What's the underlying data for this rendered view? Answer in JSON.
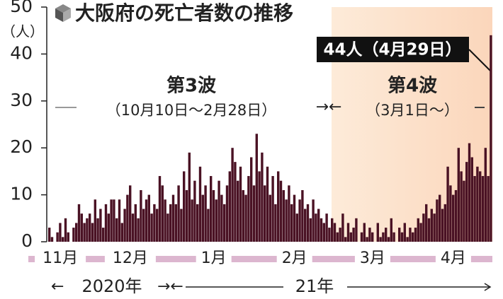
{
  "chart_data": {
    "type": "bar",
    "title": "大阪府の死亡者数の推移",
    "y_unit": "（人）",
    "annotation": "44人（4月29日）",
    "wave3": {
      "name": "第3波",
      "period": "（10月10日～2月28日）"
    },
    "wave4": {
      "name": "第4波",
      "period": "（3月1日～）"
    },
    "years": [
      "2020年",
      "21年"
    ],
    "color": "#4a1224",
    "ylim": [
      0,
      50
    ],
    "yticks": [
      0,
      10,
      20,
      30,
      40,
      50
    ],
    "categories": [
      null,
      null,
      null,
      null,
      "11月",
      null,
      null,
      null,
      null,
      null,
      null,
      null,
      null,
      null,
      null,
      null,
      null,
      null,
      null,
      null,
      null,
      null,
      null,
      null,
      null,
      null,
      null,
      null,
      null,
      null,
      "12月",
      null,
      null,
      null,
      null,
      null,
      null,
      null,
      null,
      null,
      null,
      null,
      null,
      null,
      null,
      null,
      null,
      null,
      null,
      null,
      null,
      null,
      null,
      null,
      null,
      null,
      null,
      null,
      null,
      null,
      null,
      "1月",
      null,
      null,
      null,
      null,
      null,
      null,
      null,
      null,
      null,
      null,
      null,
      null,
      null,
      null,
      null,
      null,
      null,
      null,
      null,
      null,
      null,
      null,
      null,
      null,
      null,
      null,
      null,
      null,
      null,
      "2月",
      null,
      null,
      null,
      null,
      null,
      null,
      null,
      null,
      null,
      null,
      null,
      null,
      null,
      null,
      null,
      null,
      null,
      null,
      null,
      null,
      null,
      null,
      null,
      null,
      null,
      null,
      null,
      null,
      "3月",
      null,
      null,
      null,
      null,
      null,
      null,
      null,
      null,
      null,
      null,
      null,
      null,
      null,
      null,
      null,
      null,
      null,
      null,
      null,
      null,
      null,
      null,
      null,
      null,
      null,
      null,
      null,
      null,
      null,
      "4月",
      null,
      null,
      null,
      null,
      null,
      null,
      null,
      null,
      null,
      null,
      null,
      null,
      null,
      null
    ],
    "values": [
      3,
      1,
      0,
      2,
      4,
      1,
      5,
      2,
      0,
      3,
      4,
      8,
      6,
      4,
      5,
      6,
      4,
      9,
      5,
      7,
      3,
      8,
      6,
      9,
      9,
      5,
      9,
      4,
      7,
      10,
      12,
      6,
      8,
      5,
      11,
      7,
      9,
      10,
      6,
      8,
      7,
      14,
      12,
      9,
      6,
      8,
      10,
      8,
      12,
      7,
      15,
      11,
      19,
      9,
      13,
      8,
      16,
      10,
      12,
      7,
      14,
      11,
      9,
      13,
      10,
      8,
      12,
      15,
      20,
      17,
      13,
      16,
      11,
      10,
      14,
      18,
      12,
      23,
      15,
      19,
      12,
      16,
      10,
      14,
      8,
      15,
      13,
      11,
      9,
      12,
      8,
      10,
      6,
      9,
      11,
      7,
      8,
      5,
      9,
      6,
      7,
      5,
      4,
      6,
      3,
      5,
      4,
      2,
      3,
      6,
      1,
      4,
      2,
      3,
      5,
      0,
      2,
      4,
      1,
      3,
      2,
      0,
      4,
      1,
      2,
      3,
      1,
      5,
      2,
      0,
      3,
      2,
      4,
      1,
      3,
      2,
      3,
      5,
      4,
      6,
      8,
      5,
      7,
      6,
      9,
      10,
      7,
      8,
      16,
      12,
      10,
      11,
      20,
      15,
      13,
      17,
      21,
      18,
      14,
      16,
      15,
      14,
      20,
      14,
      44
    ]
  }
}
